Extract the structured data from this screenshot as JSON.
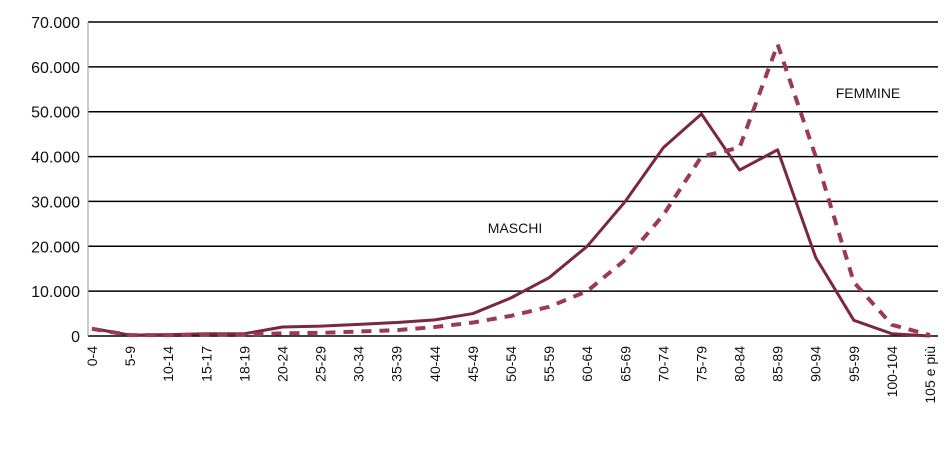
{
  "chart_data": {
    "type": "line",
    "categories": [
      "0-4",
      "5-9",
      "10-14",
      "15-17",
      "18-19",
      "20-24",
      "25-29",
      "30-34",
      "35-39",
      "40-44",
      "45-49",
      "50-54",
      "55-59",
      "60-64",
      "65-69",
      "70-74",
      "75-79",
      "80-84",
      "85-89",
      "90-94",
      "95-99",
      "100-104",
      "105 e più"
    ],
    "series": [
      {
        "name": "MASCHI",
        "color": "#7a2840",
        "dash": false,
        "values": [
          1700,
          200,
          300,
          500,
          500,
          2000,
          2200,
          2600,
          3000,
          3600,
          5000,
          8500,
          13000,
          20000,
          30000,
          42000,
          49500,
          37000,
          41500,
          17500,
          3500,
          500,
          0
        ]
      },
      {
        "name": "FEMMINE",
        "color": "#9a3a55",
        "dash": true,
        "values": [
          1600,
          200,
          200,
          300,
          300,
          600,
          700,
          1000,
          1300,
          2000,
          3000,
          4500,
          6500,
          10000,
          17000,
          27000,
          40000,
          42000,
          65000,
          40000,
          12000,
          2500,
          200
        ]
      }
    ],
    "ylim": [
      0,
      70000
    ],
    "yticks": [
      0,
      {
        "value": 10000,
        "label": "10.000"
      },
      {
        "value": 20000,
        "label": "20.000"
      },
      {
        "value": 30000,
        "label": "30.000"
      },
      {
        "value": 40000,
        "label": "40.000"
      },
      {
        "value": 50000,
        "label": "50.000"
      },
      {
        "value": 60000,
        "label": "60.000"
      },
      {
        "value": 70000,
        "label": "70.000"
      }
    ],
    "grid": true
  }
}
